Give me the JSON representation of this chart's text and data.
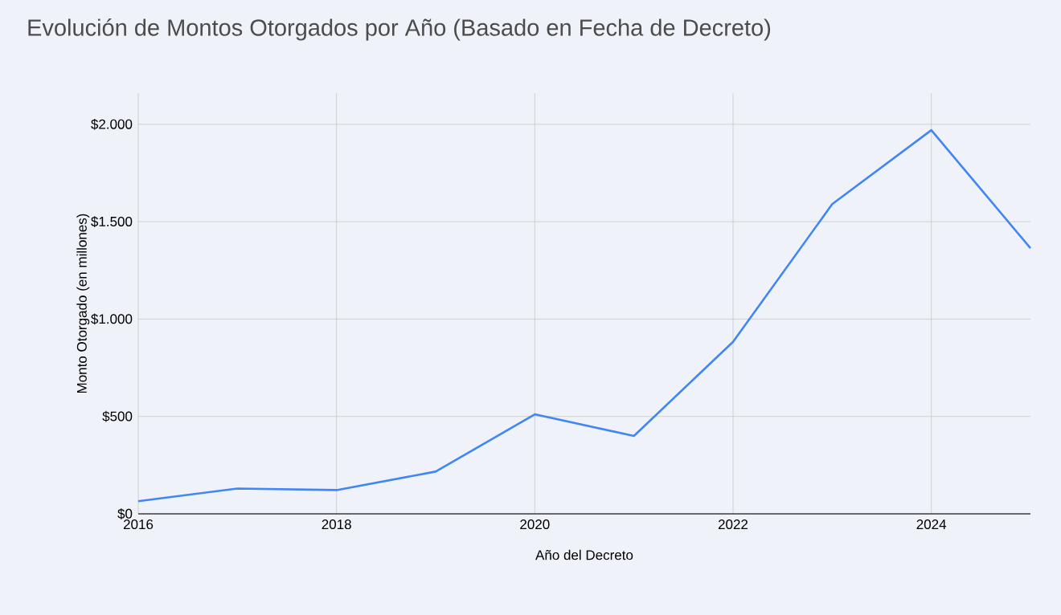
{
  "chart_data": {
    "type": "line",
    "title": "Evolución de Montos Otorgados por Año (Basado en Fecha de Decreto)",
    "xlabel": "Año del Decreto",
    "ylabel": "Monto Otorgado (en millones)",
    "x": [
      2016,
      2017,
      2018,
      2019,
      2020,
      2021,
      2022,
      2023,
      2024,
      2025
    ],
    "series": [
      {
        "color": "#4285f4",
        "values": [
          65,
          130,
          122,
          217,
          511,
          400,
          883,
          1590,
          1970,
          1364
        ]
      }
    ],
    "xlim": [
      2016,
      2025
    ],
    "xticks": [
      2016,
      2018,
      2020,
      2022,
      2024
    ],
    "ylim": [
      0,
      2160
    ],
    "yticks": [
      {
        "value": 0,
        "label": "$0"
      },
      {
        "value": 500,
        "label": "$500"
      },
      {
        "value": 1000,
        "label": "$1.000"
      },
      {
        "value": 1500,
        "label": "$1.500"
      },
      {
        "value": 2000,
        "label": "$2.000"
      }
    ],
    "grid": true,
    "marker": "none",
    "line_style": "solid"
  }
}
